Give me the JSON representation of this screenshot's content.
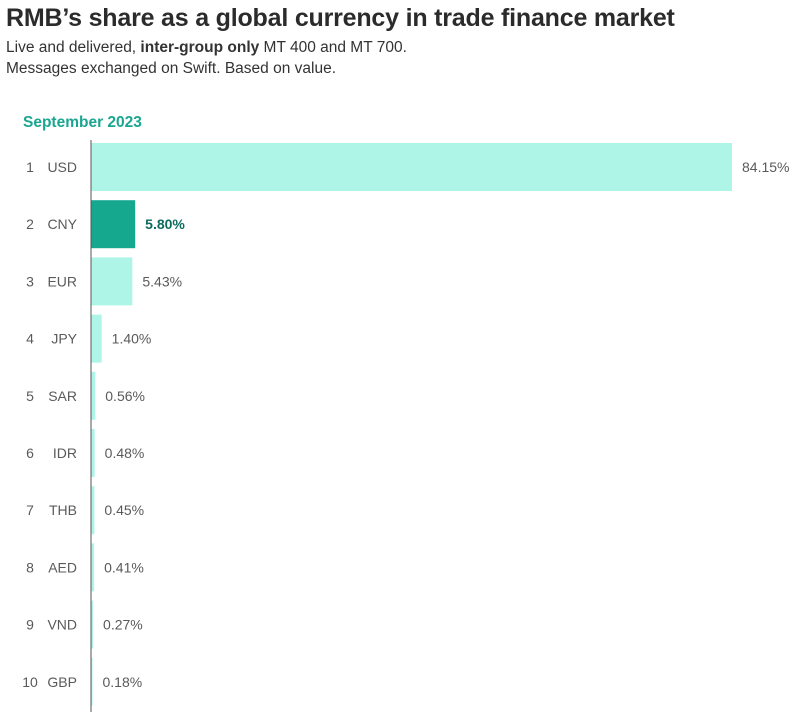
{
  "header": {
    "title": "RMB’s share as a global currency in trade finance market",
    "subtitle_prefix": "Live and delivered, ",
    "subtitle_bold": "inter-group only",
    "subtitle_suffix": " MT 400 and MT 700.",
    "subtitle_line2": "Messages exchanged on Swift. Based on value."
  },
  "period_label": "September 2023",
  "colors": {
    "bar": "#aef5e8",
    "highlight_bar": "#16a88f",
    "axis": "#555555"
  },
  "chart_data": {
    "type": "bar",
    "orientation": "horizontal",
    "title": "RMB’s share as a global currency in trade finance market",
    "ranks": [
      "1",
      "2",
      "3",
      "4",
      "5",
      "6",
      "7",
      "8",
      "9",
      "10"
    ],
    "categories": [
      "USD",
      "CNY",
      "EUR",
      "JPY",
      "SAR",
      "IDR",
      "THB",
      "AED",
      "VND",
      "GBP"
    ],
    "values": [
      84.15,
      5.8,
      5.43,
      1.4,
      0.56,
      0.48,
      0.45,
      0.41,
      0.27,
      0.18
    ],
    "value_labels": [
      "84.15%",
      "5.80%",
      "5.43%",
      "1.40%",
      "0.56%",
      "0.48%",
      "0.45%",
      "0.41%",
      "0.27%",
      "0.18%"
    ],
    "highlight": "CNY",
    "grid": false,
    "legend": "none"
  }
}
